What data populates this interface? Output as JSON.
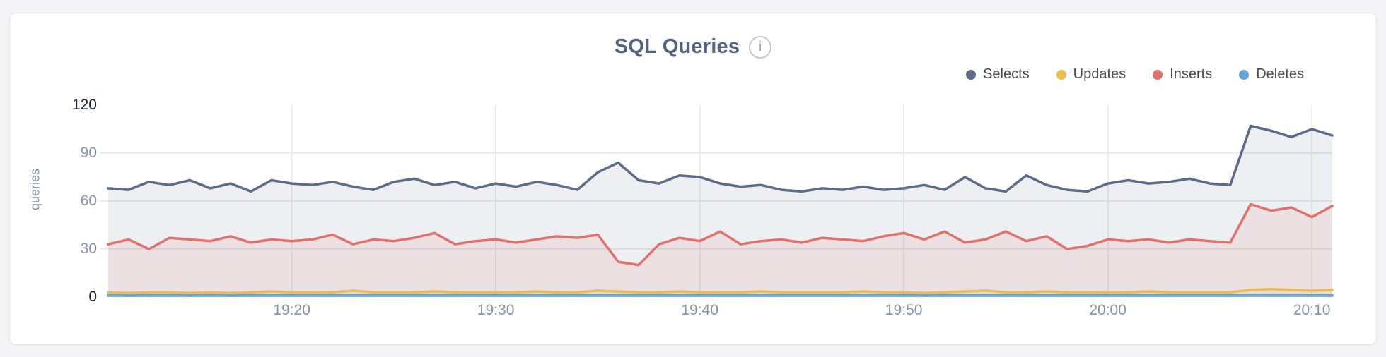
{
  "card": {
    "title": "SQL Queries",
    "info_icon": "i"
  },
  "legend": [
    {
      "label": "Selects",
      "color": "#5c6b87"
    },
    {
      "label": "Updates",
      "color": "#e9bd4f"
    },
    {
      "label": "Inserts",
      "color": "#e0716b"
    },
    {
      "label": "Deletes",
      "color": "#68a4d9"
    }
  ],
  "colors": {
    "page_bg": "#f4f4f6",
    "card_bg": "#ffffff",
    "card_border": "#e4e4e8",
    "title": "#54627e",
    "grid": "#e8e8ea",
    "axis_text": "#8793ab",
    "axis_text_strong": "#1a2438",
    "legend_text": "#4a4a4a",
    "info_icon": "#9aa2ae"
  },
  "chart_data": {
    "type": "area",
    "title": "SQL Queries",
    "xlabel": "",
    "ylabel": "queries",
    "ylim": [
      0,
      120
    ],
    "yticks": [
      0,
      30,
      60,
      90,
      120
    ],
    "grid": true,
    "legend_position": "top-right",
    "x_start_time": "19:11",
    "x_interval_min": 1,
    "x_tick_labels": [
      "19:20",
      "19:30",
      "19:40",
      "19:50",
      "20:00",
      "20:10"
    ],
    "x_tick_indices": [
      9,
      19,
      29,
      39,
      49,
      59
    ],
    "series": [
      {
        "name": "Selects",
        "color": "#5c6b87",
        "fill_opacity": 0.11,
        "line_width": 3.5,
        "values": [
          68,
          67,
          72,
          70,
          73,
          68,
          71,
          66,
          73,
          71,
          70,
          72,
          69,
          67,
          72,
          74,
          70,
          72,
          68,
          71,
          69,
          72,
          70,
          67,
          78,
          84,
          73,
          71,
          76,
          75,
          71,
          69,
          70,
          67,
          66,
          68,
          67,
          69,
          67,
          68,
          70,
          67,
          75,
          68,
          66,
          76,
          70,
          67,
          66,
          71,
          73,
          71,
          72,
          74,
          71,
          70,
          107,
          104,
          100,
          105,
          101
        ]
      },
      {
        "name": "Inserts",
        "color": "#e0716b",
        "fill_opacity": 0.11,
        "line_width": 3.5,
        "values": [
          33,
          36,
          30,
          37,
          36,
          35,
          38,
          34,
          36,
          35,
          36,
          39,
          33,
          36,
          35,
          37,
          40,
          33,
          35,
          36,
          34,
          36,
          38,
          37,
          39,
          22,
          20,
          33,
          37,
          35,
          41,
          33,
          35,
          36,
          34,
          37,
          36,
          35,
          38,
          40,
          36,
          41,
          34,
          36,
          41,
          35,
          38,
          30,
          32,
          36,
          35,
          36,
          34,
          36,
          35,
          34,
          58,
          54,
          56,
          50,
          57
        ]
      },
      {
        "name": "Updates",
        "color": "#e9bd4f",
        "fill_opacity": 0.16,
        "line_width": 3.5,
        "values": [
          3,
          2.5,
          3,
          3,
          2.5,
          3,
          2.5,
          3,
          3.5,
          3,
          3,
          3,
          4,
          3,
          3,
          3,
          3.5,
          3,
          3,
          3,
          3,
          3.5,
          3,
          3,
          4,
          3.5,
          3,
          3,
          3.5,
          3,
          3,
          3,
          3.5,
          3,
          3,
          3,
          3,
          3.5,
          3,
          3,
          2.5,
          3,
          3.5,
          4,
          3,
          3,
          3.5,
          3,
          3,
          3,
          3,
          3.5,
          3,
          3,
          3,
          3,
          4.5,
          5,
          4.5,
          4,
          4.5
        ]
      },
      {
        "name": "Deletes",
        "color": "#68a4d9",
        "fill_opacity": 0.18,
        "line_width": 4,
        "values": [
          1,
          1,
          1,
          1,
          1,
          1,
          1,
          1,
          1,
          1,
          1,
          1,
          1,
          1,
          1,
          1,
          1,
          1,
          1,
          1,
          1,
          1,
          1,
          1,
          1,
          1,
          1,
          1,
          1,
          1,
          1,
          1,
          1,
          1,
          1,
          1,
          1,
          1,
          1,
          1,
          1,
          1,
          1,
          1,
          1,
          1,
          1,
          1,
          1,
          1,
          1,
          1,
          1,
          1,
          1,
          1,
          1,
          1,
          1,
          1,
          1
        ]
      }
    ]
  }
}
